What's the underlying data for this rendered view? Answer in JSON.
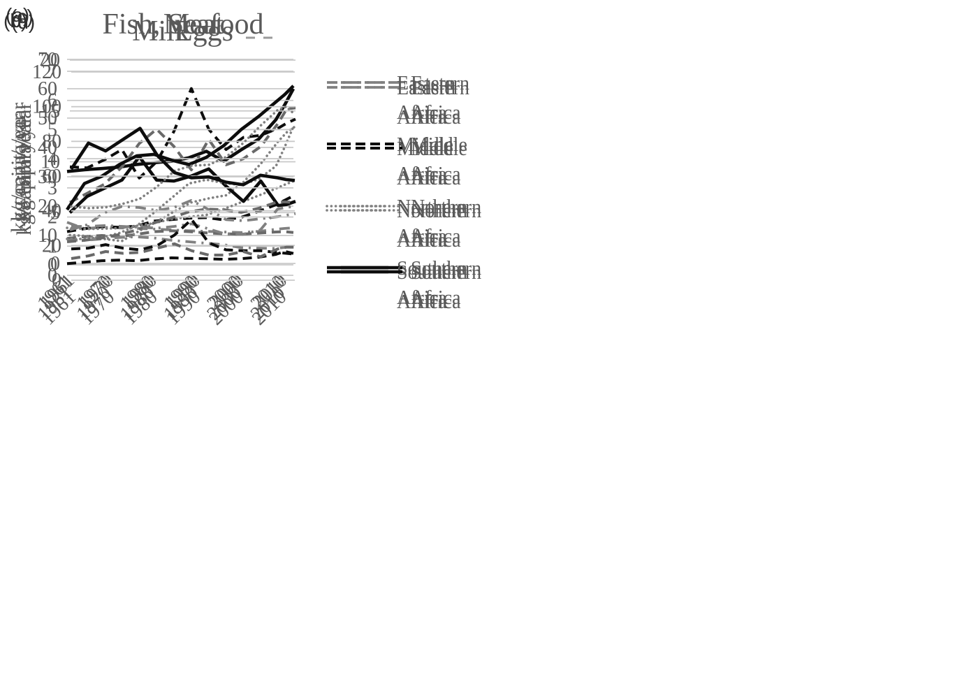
{
  "figure": {
    "description": "Four-panel line chart figure of per-capita food supply in African regions",
    "background": "#ffffff"
  },
  "colors": {
    "gridline": "#c9c9c9",
    "black_line": "#0d0d0d",
    "gray_line": "#808080",
    "dark_gray_line": "#696969",
    "text_gray": "#595959",
    "panel_letter": "#2f2f2f"
  },
  "chart_data": [
    {
      "id": "a",
      "panel_letter": "(a)",
      "type": "line",
      "title": "Meat",
      "ylabel": "kg/capita/year",
      "xlabel": "",
      "grid": "horizontal",
      "legend_position": "right",
      "ylim": [
        0,
        70
      ],
      "yticks": [
        0,
        10,
        20,
        30,
        40,
        50,
        60,
        70
      ],
      "x_tick_labels": [
        "1961",
        "1970",
        "1980",
        "1990",
        "2000",
        "2010"
      ],
      "x_years": [
        1961,
        1965,
        1969,
        1973,
        1977,
        1981,
        1985,
        1989,
        1993,
        1997,
        2001,
        2005,
        2009,
        2011,
        2013
      ],
      "series": [
        {
          "name": "Eastern Africa",
          "in_legend": true,
          "style": "dashdot",
          "color": "#808080",
          "values": [
            14.5,
            12.3,
            12.8,
            12.6,
            12.4,
            12.2,
            11.9,
            11.6,
            11.4,
            11.2,
            11.0,
            11.4,
            12.1,
            12.4,
            12.6
          ]
        },
        {
          "name": "Middle Africa",
          "in_legend": true,
          "style": "dashed",
          "color": "#0d0d0d",
          "values": [
            11.3,
            12.3,
            13.0,
            12.8,
            13.2,
            14.9,
            15.4,
            15.9,
            16.1,
            15.3,
            16.2,
            18.2,
            20.5,
            22.0,
            23.5
          ]
        },
        {
          "name": "Northern Africa",
          "in_legend": true,
          "style": "dotted",
          "color": "#808080",
          "values": [
            12.6,
            12.2,
            12.3,
            12.5,
            13.3,
            14.2,
            15.6,
            16.3,
            17.0,
            19.0,
            21.3,
            23.6,
            26.0,
            27.3,
            28.5
          ]
        },
        {
          "name": "(unlabeled gray dashed series)",
          "in_legend": false,
          "style": "dashed",
          "color": "#696969",
          "values": [
            9.0,
            9.6,
            10.0,
            9.6,
            10.4,
            11.3,
            11.6,
            11.3,
            10.9,
            10.6,
            10.4,
            10.8,
            11.2,
            11.3,
            11.0
          ]
        },
        {
          "name": "Southern Africa",
          "in_legend": true,
          "style": "solid",
          "color": "#0d0d0d",
          "values": [
            31.8,
            32.4,
            32.8,
            33.3,
            34.2,
            34.8,
            35.3,
            36.5,
            38.7,
            35.3,
            39.2,
            42.8,
            49.5,
            54.5,
            60.0
          ]
        }
      ]
    },
    {
      "id": "c",
      "panel_letter": "(c)",
      "type": "line",
      "title": "Fish, Seafood",
      "ylabel": "kg/capita/year",
      "xlabel": "",
      "grid": "horizontal",
      "legend_position": "right",
      "ylim": [
        0,
        20
      ],
      "yticks": [
        0,
        5,
        10,
        15,
        20
      ],
      "x_tick_labels": [
        "1961",
        "1970",
        "1980",
        "1990",
        "2000",
        "2010"
      ],
      "x_years": [
        1961,
        1965,
        1969,
        1973,
        1977,
        1981,
        1985,
        1989,
        1993,
        1997,
        2001,
        2005,
        2009,
        2011,
        2013
      ],
      "series": [
        {
          "name": "Eastern Africa",
          "in_legend": true,
          "style": "dashdot",
          "color": "#808080",
          "values": [
            3.3,
            3.8,
            5.0,
            5.6,
            5.5,
            5.2,
            5.5,
            6.2,
            5.3,
            4.3,
            4.2,
            4.4,
            4.6,
            4.75,
            4.9
          ]
        },
        {
          "name": "Middle Africa",
          "in_legend": true,
          "style": "dashed",
          "color": "#0d0d0d",
          "values": [
            9.5,
            9.4,
            10.2,
            11.2,
            8.4,
            10.0,
            13.0,
            17.2,
            13.2,
            11.2,
            12.4,
            12.6,
            13.3,
            13.8,
            14.2
          ]
        },
        {
          "name": "Northern Africa",
          "in_legend": true,
          "style": "dotted",
          "color": "#808080",
          "values": [
            2.8,
            2.7,
            2.4,
            2.2,
            3.2,
            4.1,
            5.1,
            6.0,
            6.4,
            6.7,
            8.0,
            9.8,
            12.0,
            12.9,
            13.5
          ]
        },
        {
          "name": "(unlabeled gray dashed series)",
          "in_legend": false,
          "style": "dashed",
          "color": "#696969",
          "values": [
            6.0,
            6.9,
            7.8,
            9.5,
            11.8,
            13.2,
            11.5,
            9.2,
            12.2,
            9.7,
            10.3,
            11.5,
            13.8,
            15.2,
            15.3
          ]
        },
        {
          "name": "Southern Africa",
          "in_legend": true,
          "style": "solid",
          "color": "#0d0d0d",
          "values": [
            5.0,
            6.6,
            7.4,
            8.2,
            10.5,
            8.2,
            8.1,
            8.6,
            9.3,
            7.6,
            6.1,
            8.1,
            5.7,
            5.8,
            6.1
          ]
        }
      ]
    },
    {
      "id": "b",
      "panel_letter": "(b)",
      "type": "line",
      "title": "Eggs",
      "ylabel": "kg/capita/year",
      "xlabel": "",
      "grid": "horizontal",
      "legend_position": "right",
      "ylim": [
        0,
        7
      ],
      "yticks": [
        0,
        1,
        2,
        3,
        4,
        5,
        6,
        7
      ],
      "x_tick_labels": [
        "1961",
        "1970",
        "1980",
        "1990",
        "2000",
        "2010"
      ],
      "x_years": [
        1961,
        1965,
        1969,
        1973,
        1977,
        1981,
        1985,
        1989,
        1993,
        1997,
        2001,
        2005,
        2009,
        2011,
        2013
      ],
      "series": [
        {
          "name": "Eastern Africa",
          "in_legend": true,
          "style": "dashdot",
          "color": "#808080",
          "values": [
            1.2,
            1.2,
            1.25,
            1.3,
            1.32,
            1.28,
            1.2,
            1.15,
            1.1,
            1.05,
            0.95,
            0.93,
            0.92,
            0.96,
            1.0
          ]
        },
        {
          "name": "Middle Africa",
          "in_legend": true,
          "style": "dashed",
          "color": "#0d0d0d",
          "values": [
            0.4,
            0.45,
            0.5,
            0.52,
            0.5,
            0.56,
            0.6,
            0.58,
            0.57,
            0.55,
            0.57,
            0.62,
            0.72,
            0.82,
            0.75
          ]
        },
        {
          "name": "Northern Africa",
          "in_legend": true,
          "style": "dotted",
          "color": "#808080",
          "values": [
            1.25,
            1.25,
            1.3,
            1.45,
            1.7,
            2.15,
            2.65,
            3.15,
            3.28,
            3.17,
            3.1,
            3.3,
            3.75,
            4.4,
            5.1
          ]
        },
        {
          "name": "(unlabeled gray dashed series)",
          "in_legend": false,
          "style": "dashed",
          "color": "#696969",
          "values": [
            1.15,
            1.2,
            1.28,
            1.4,
            1.55,
            1.8,
            1.97,
            2.18,
            2.27,
            2.25,
            2.16,
            2.3,
            2.5,
            2.52,
            2.5
          ]
        },
        {
          "name": "Southern Africa",
          "in_legend": true,
          "style": "solid",
          "color": "#0d0d0d",
          "values": [
            2.25,
            3.15,
            3.4,
            3.8,
            4.1,
            4.15,
            3.95,
            3.8,
            4.05,
            4.45,
            5.0,
            5.45,
            5.95,
            6.2,
            6.5
          ]
        }
      ]
    },
    {
      "id": "d",
      "panel_letter": "(d)",
      "type": "line",
      "title": "Milk",
      "ylabel": "kg/capita/year",
      "xlabel": "",
      "grid": "horizontal",
      "legend_position": "right",
      "ylim": [
        0,
        120
      ],
      "yticks": [
        0,
        20,
        40,
        60,
        80,
        100,
        120
      ],
      "x_tick_labels": [
        "1961",
        "1970",
        "1980",
        "1990",
        "2000",
        "2010"
      ],
      "x_years": [
        1961,
        1965,
        1969,
        1973,
        1977,
        1981,
        1985,
        1989,
        1993,
        1997,
        2001,
        2005,
        2009,
        2011,
        2013
      ],
      "series": [
        {
          "name": "Eastern Africa",
          "in_legend": true,
          "style": "dashdot",
          "color": "#808080",
          "values": [
            31,
            31,
            31.5,
            31,
            30.5,
            30,
            31,
            32.5,
            29.5,
            26.5,
            26.5,
            29,
            41,
            42,
            42.5
          ]
        },
        {
          "name": "Middle Africa",
          "in_legend": true,
          "style": "dashed",
          "color": "#0d0d0d",
          "values": [
            18,
            18.5,
            20.5,
            18.5,
            17.5,
            20,
            26,
            35,
            21.5,
            17.5,
            17,
            17,
            16,
            15.5,
            15
          ]
        },
        {
          "name": "Northern Africa",
          "in_legend": true,
          "style": "dotted",
          "color": "#808080",
          "values": [
            42.5,
            41.5,
            42,
            44,
            47,
            54,
            63,
            66,
            66.5,
            71,
            79,
            89,
            98,
            100,
            95.5
          ]
        },
        {
          "name": "(unlabeled gray dashed series)",
          "in_legend": false,
          "style": "dashed",
          "color": "#696969",
          "values": [
            12.5,
            14,
            16.5,
            15.5,
            16,
            18.5,
            21,
            17,
            14.5,
            14.5,
            16.5,
            13.5,
            18,
            19,
            19
          ]
        },
        {
          "name": "Southern Africa",
          "in_legend": true,
          "style": "solid",
          "color": "#0d0d0d",
          "values": [
            64,
            79,
            74.5,
            81,
            87.5,
            72,
            62,
            59,
            59.5,
            56.5,
            55,
            60.5,
            59,
            58,
            57.5
          ]
        }
      ]
    }
  ]
}
